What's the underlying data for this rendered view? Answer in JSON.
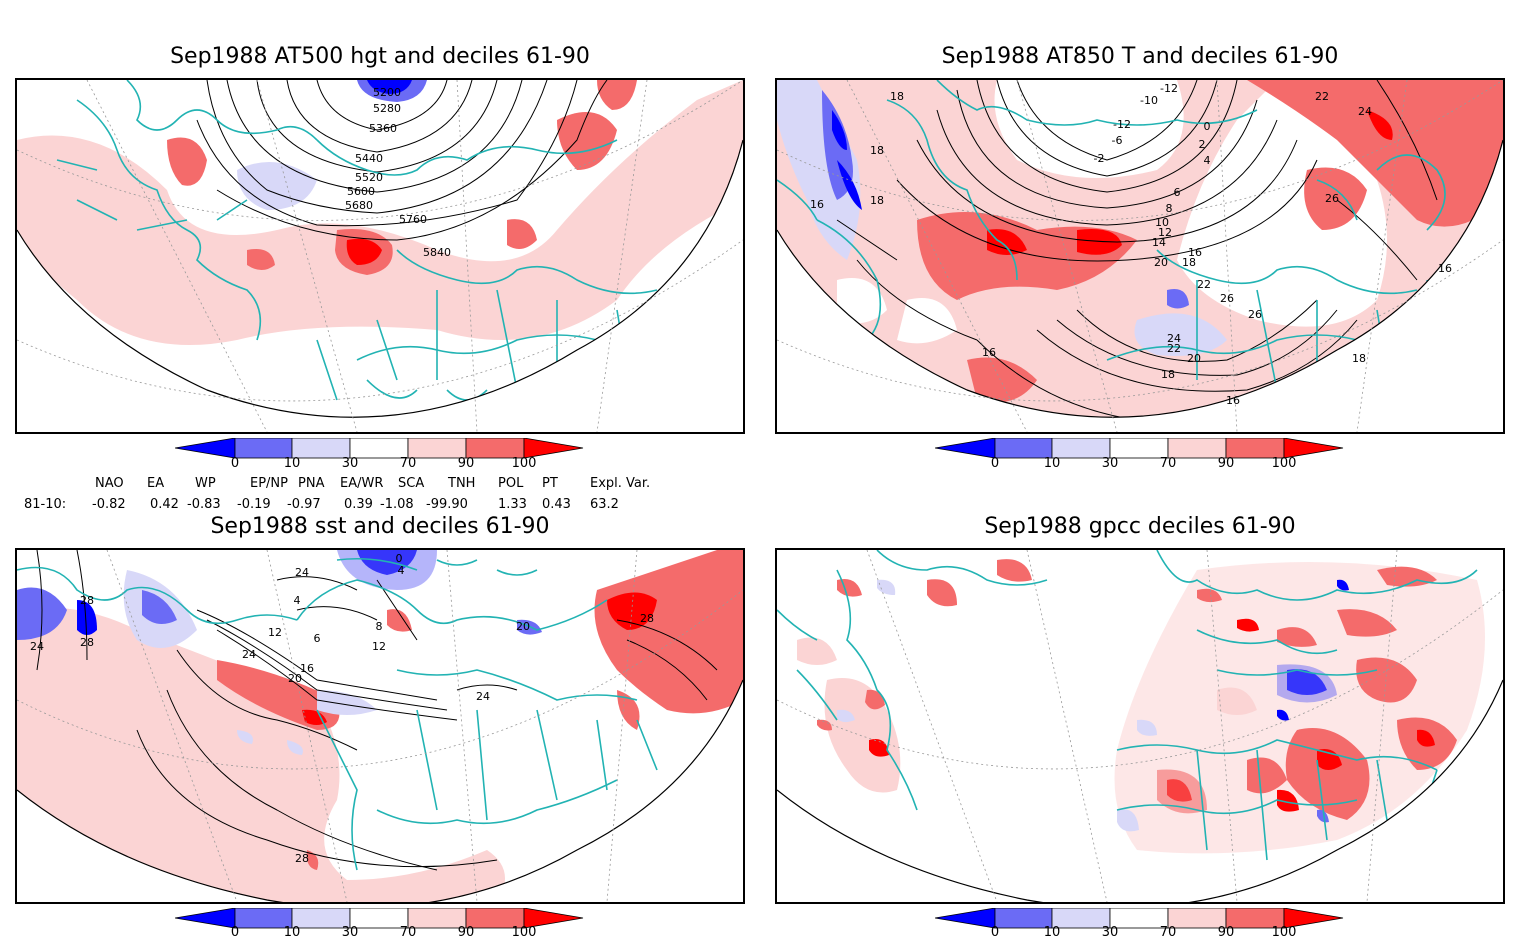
{
  "panels": [
    {
      "title": "Sep1988 AT500 hgt and deciles 61-90",
      "contour_labels": [
        "5200",
        "5280",
        "5360",
        "5440",
        "5520",
        "5600",
        "5680",
        "5760",
        "5840"
      ]
    },
    {
      "title": "Sep1988 AT850 T and deciles 61-90",
      "contour_labels": [
        "-12",
        "-10",
        "-12",
        "-6",
        "-2",
        "0",
        "2",
        "4",
        "6",
        "8",
        "10",
        "12",
        "14",
        "16",
        "18",
        "18",
        "16",
        "16",
        "18",
        "18",
        "20",
        "22",
        "24",
        "26",
        "26",
        "26",
        "22",
        "24",
        "22",
        "20",
        "18",
        "16",
        "16",
        "18"
      ]
    },
    {
      "title": "Sep1988 sst and deciles 61-90",
      "contour_labels": [
        "24",
        "28",
        "28",
        "24",
        "4",
        "0",
        "4",
        "12",
        "8",
        "6",
        "12",
        "16",
        "20",
        "24",
        "24",
        "20",
        "28",
        "28"
      ]
    },
    {
      "title": "Sep1988 gpcc deciles 61-90",
      "contour_labels": []
    }
  ],
  "colorbar": {
    "labels": [
      "0",
      "10",
      "30",
      "70",
      "90",
      "100"
    ],
    "colors": [
      "#0000ff",
      "#6b6bf5",
      "#d8d8f8",
      "#ffffff",
      "#fbd4d4",
      "#f46b6b",
      "#ff0000"
    ]
  },
  "indices": {
    "row_label": "81-10:",
    "headers": [
      "NAO",
      "EA",
      "WP",
      "EP/NP",
      "PNA",
      "EA/WR",
      "SCA",
      "TNH",
      "POL",
      "PT",
      "Expl. Var."
    ],
    "values": [
      "-0.82",
      "0.42",
      "-0.83",
      "-0.19",
      "-0.97",
      "0.39",
      "-1.08",
      "-99.90",
      "1.33",
      "0.43",
      "63.2"
    ]
  },
  "colors": {
    "coast": "#22b3b3",
    "contour": "#000000",
    "grid": "#999999"
  }
}
